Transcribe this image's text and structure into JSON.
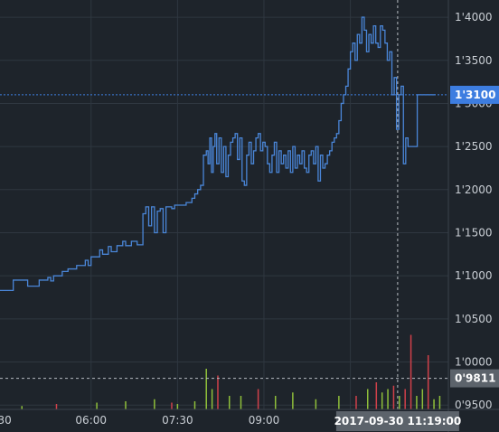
{
  "colors": {
    "background": "#1e242b",
    "grid": "#2f3740",
    "price_line": "#4a86d8",
    "price_label_bg": "#3d7de0",
    "volume_up": "#8fbf3a",
    "volume_down": "#d0404a",
    "crosshair": "#b8bcc2",
    "crosshair_label_bg": "#5c636b"
  },
  "chart_data": {
    "type": "line",
    "title": "",
    "xlabel": "",
    "ylabel": "",
    "x_tick_labels": [
      "30",
      "06:00",
      "07:30",
      "09:00"
    ],
    "y_tick_labels": [
      "1'4000",
      "1'3500",
      "1'3000",
      "1'2500",
      "1'2000",
      "1'1500",
      "1'1000",
      "1'0500",
      "1'0000",
      "0'9500"
    ],
    "ylim": [
      0.945,
      1.42
    ],
    "xlim_hours": [
      4.42,
      12.2
    ],
    "grid": true,
    "y_axis_position": "right",
    "current_price_label": "1'3100",
    "current_price": 1.31,
    "crosshair_price_label": "0'9811",
    "crosshair_price": 0.9811,
    "crosshair_time_label": "2017-09-30  11:19:00",
    "crosshair_time_hours": 11.32,
    "series": [
      {
        "values_x_hours": [
          4.42,
          4.6,
          4.65,
          4.86,
          4.9,
          5.05,
          5.1,
          5.2,
          5.25,
          5.3,
          5.35,
          5.45,
          5.5,
          5.55,
          5.6,
          5.7,
          5.75,
          5.8,
          5.9,
          5.95,
          6.0,
          6.1,
          6.15,
          6.2,
          6.3,
          6.35,
          6.45,
          6.55,
          6.6,
          6.7,
          6.8,
          6.9,
          6.95,
          7.0,
          7.05,
          7.1,
          7.15,
          7.2,
          7.25,
          7.3,
          7.35,
          7.4,
          7.45,
          7.55,
          7.65,
          7.75,
          7.8,
          7.85,
          7.9,
          7.95,
          8.0,
          8.03,
          8.06,
          8.09,
          8.12,
          8.15,
          8.18,
          8.22,
          8.26,
          8.3,
          8.34,
          8.38,
          8.42,
          8.46,
          8.5,
          8.54,
          8.58,
          8.62,
          8.66,
          8.7,
          8.74,
          8.78,
          8.82,
          8.86,
          8.9,
          8.94,
          8.98,
          9.02,
          9.06,
          9.1,
          9.14,
          9.18,
          9.22,
          9.26,
          9.3,
          9.34,
          9.38,
          9.42,
          9.46,
          9.5,
          9.54,
          9.58,
          9.62,
          9.66,
          9.7,
          9.74,
          9.78,
          9.82,
          9.86,
          9.9,
          9.94,
          9.98,
          10.02,
          10.06,
          10.1,
          10.14,
          10.18,
          10.22,
          10.26,
          10.3,
          10.34,
          10.38,
          10.42,
          10.46,
          10.5,
          10.54,
          10.58,
          10.62,
          10.66,
          10.7,
          10.74,
          10.78,
          10.82,
          10.86,
          10.9,
          10.94,
          10.98,
          11.02,
          11.06,
          11.1,
          11.14,
          11.18,
          11.22,
          11.26,
          11.3,
          11.34,
          11.38,
          11.42,
          11.46,
          11.5,
          11.54,
          11.58,
          11.62,
          11.66,
          11.7,
          11.74,
          11.78,
          11.82,
          11.86,
          11.9,
          11.94,
          11.98,
          12.02,
          12.06,
          12.1,
          12.14
        ],
        "values": [
          1.083,
          1.083,
          1.095,
          1.095,
          1.088,
          1.088,
          1.095,
          1.095,
          1.098,
          1.094,
          1.1,
          1.1,
          1.105,
          1.105,
          1.108,
          1.108,
          1.112,
          1.112,
          1.118,
          1.112,
          1.122,
          1.122,
          1.13,
          1.125,
          1.134,
          1.128,
          1.135,
          1.14,
          1.135,
          1.14,
          1.136,
          1.172,
          1.18,
          1.158,
          1.18,
          1.15,
          1.175,
          1.178,
          1.15,
          1.18,
          1.18,
          1.178,
          1.182,
          1.182,
          1.185,
          1.19,
          1.195,
          1.2,
          1.205,
          1.24,
          1.245,
          1.23,
          1.26,
          1.22,
          1.25,
          1.265,
          1.23,
          1.26,
          1.22,
          1.25,
          1.215,
          1.24,
          1.255,
          1.26,
          1.265,
          1.235,
          1.26,
          1.21,
          1.205,
          1.24,
          1.255,
          1.23,
          1.245,
          1.26,
          1.265,
          1.245,
          1.255,
          1.25,
          1.23,
          1.22,
          1.24,
          1.255,
          1.22,
          1.245,
          1.23,
          1.24,
          1.225,
          1.245,
          1.22,
          1.25,
          1.225,
          1.24,
          1.23,
          1.245,
          1.225,
          1.22,
          1.24,
          1.245,
          1.23,
          1.25,
          1.21,
          1.24,
          1.225,
          1.23,
          1.24,
          1.245,
          1.255,
          1.26,
          1.265,
          1.28,
          1.3,
          1.31,
          1.32,
          1.34,
          1.36,
          1.37,
          1.35,
          1.38,
          1.37,
          1.4,
          1.385,
          1.36,
          1.38,
          1.37,
          1.39,
          1.37,
          1.365,
          1.39,
          1.385,
          1.37,
          1.35,
          1.36,
          1.31,
          1.33,
          1.27,
          1.31,
          1.32,
          1.23,
          1.26,
          1.25,
          1.25,
          1.25,
          1.25,
          1.31,
          1.31,
          1.31,
          1.31,
          1.31,
          1.31,
          1.31,
          1.31,
          1.31
        ]
      }
    ],
    "volume": {
      "values_x_hours": [
        4.8,
        5.4,
        6.1,
        6.6,
        7.1,
        7.4,
        7.5,
        7.8,
        8.0,
        8.1,
        8.2,
        8.4,
        8.6,
        8.9,
        9.2,
        9.5,
        9.9,
        10.3,
        10.6,
        10.8,
        10.95,
        11.05,
        11.15,
        11.25,
        11.35,
        11.45,
        11.55,
        11.65,
        11.75,
        11.85,
        11.95,
        12.05
      ],
      "values": [
        0.005,
        0.008,
        0.01,
        0.012,
        0.015,
        0.01,
        0.008,
        0.012,
        0.06,
        0.03,
        0.05,
        0.02,
        0.02,
        0.03,
        0.02,
        0.025,
        0.015,
        0.02,
        0.02,
        0.03,
        0.04,
        0.025,
        0.03,
        0.035,
        0.02,
        0.03,
        0.11,
        0.02,
        0.03,
        0.08,
        0.015,
        0.02
      ],
      "direction": [
        "up",
        "down",
        "up",
        "up",
        "up",
        "down",
        "up",
        "up",
        "up",
        "up",
        "down",
        "up",
        "up",
        "down",
        "up",
        "up",
        "up",
        "up",
        "down",
        "up",
        "down",
        "up",
        "up",
        "down",
        "up",
        "down",
        "down",
        "up",
        "up",
        "down",
        "up",
        "up"
      ]
    }
  }
}
